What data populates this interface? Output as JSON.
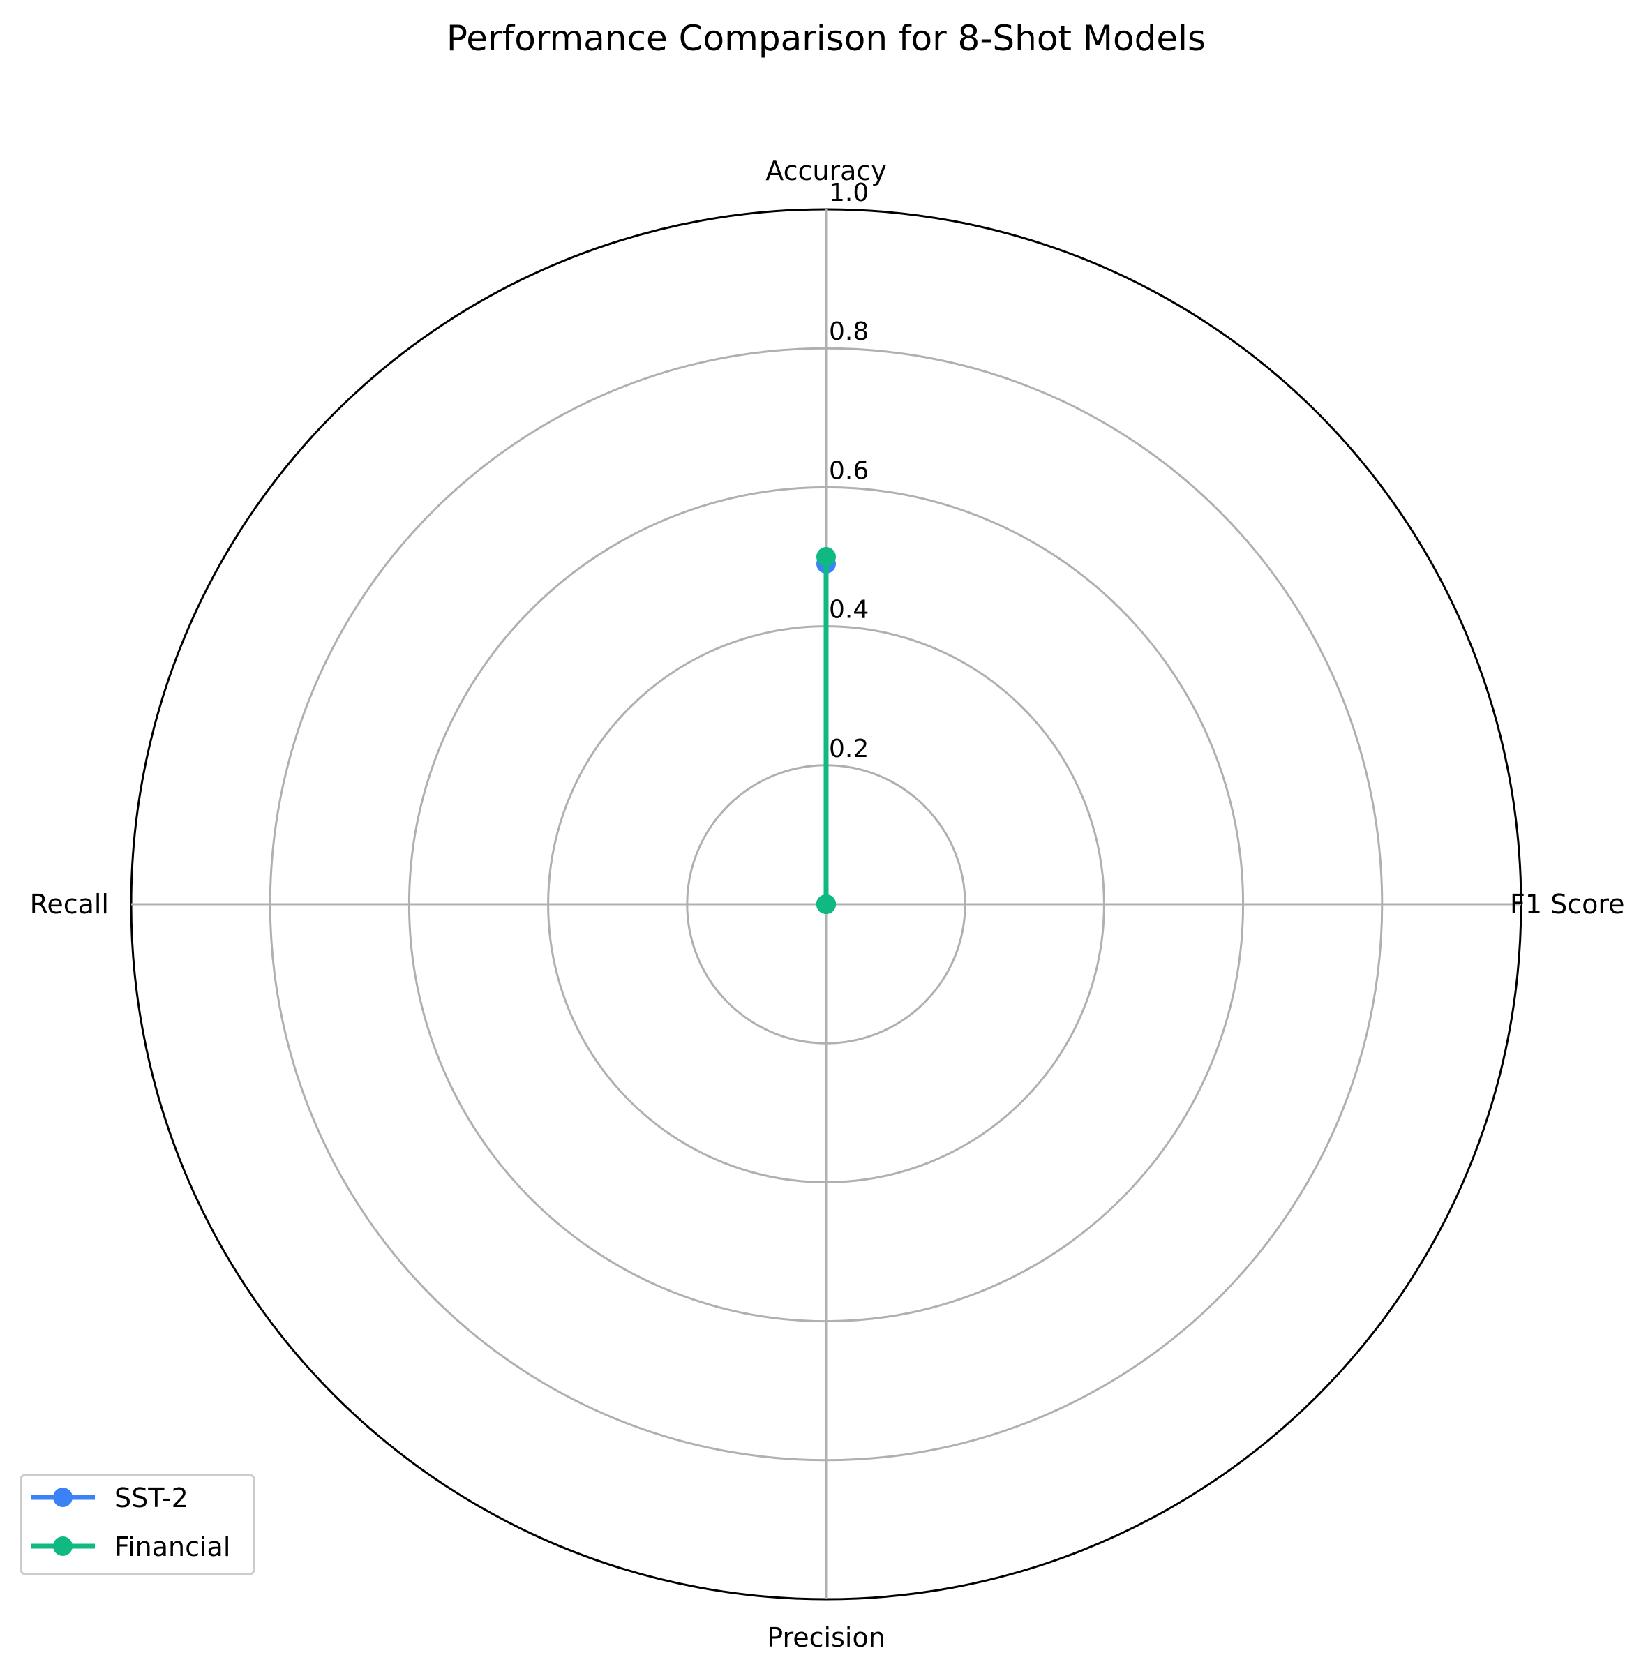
{
  "chart_data": {
    "type": "radar",
    "title": "Performance Comparison for 8-Shot Models",
    "axes": [
      "Accuracy",
      "F1 Score",
      "Precision",
      "Recall"
    ],
    "rlim": [
      0,
      1.0
    ],
    "r_ticks": [
      "0.2",
      "0.4",
      "0.6",
      "0.8",
      "1.0"
    ],
    "grid": true,
    "legend_position": "lower-left",
    "series": [
      {
        "name": "SST-2",
        "color": "#3b82f6",
        "values": [
          0.49,
          0.0,
          0.0,
          0.0
        ]
      },
      {
        "name": "Financial",
        "color": "#10b981",
        "values": [
          0.5,
          0.0,
          0.0,
          0.0
        ]
      }
    ]
  }
}
